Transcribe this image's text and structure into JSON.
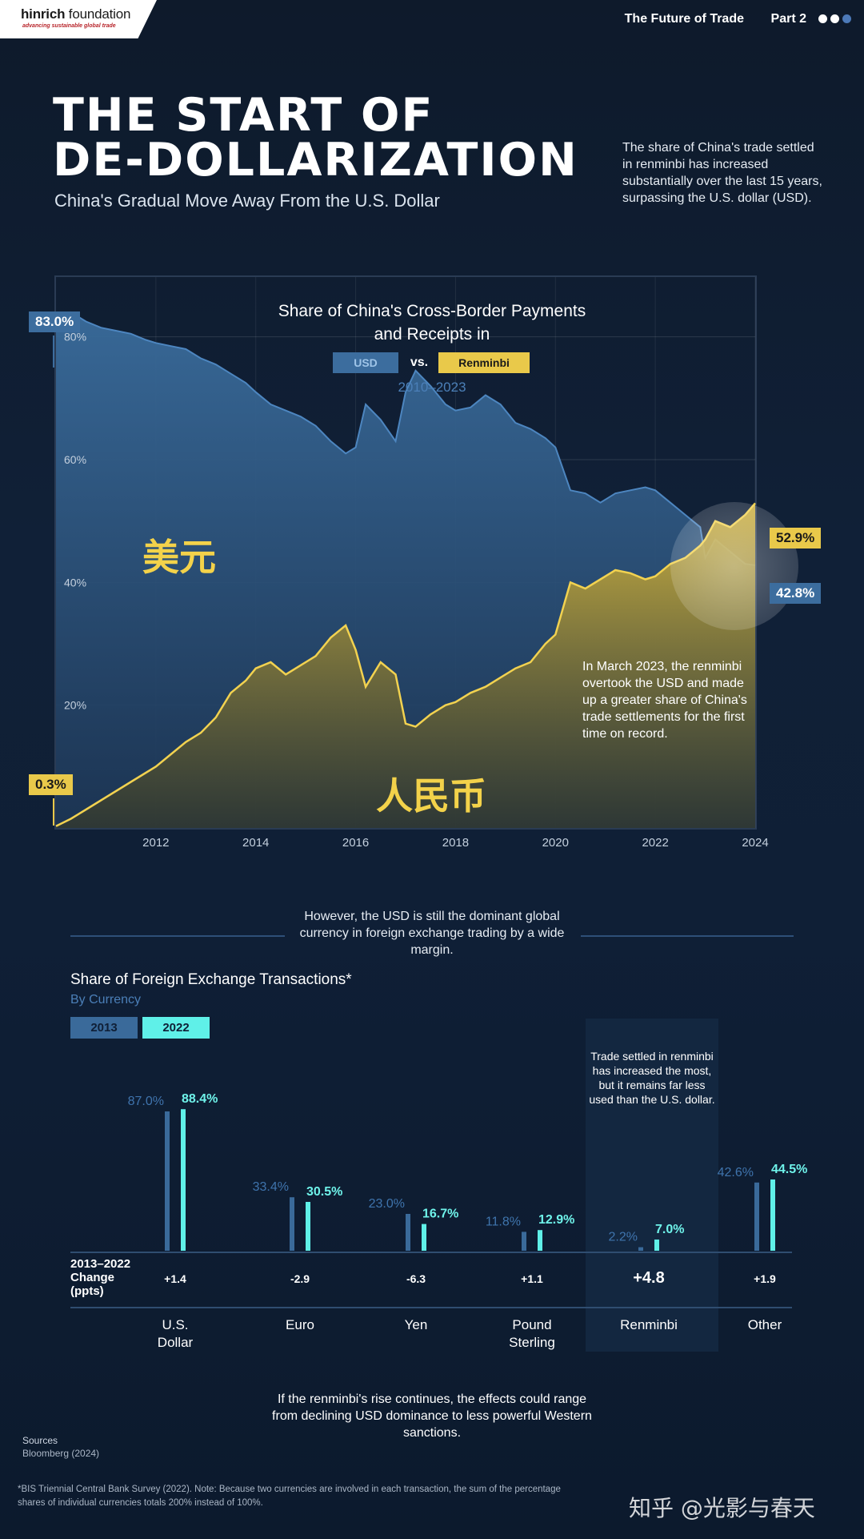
{
  "header": {
    "brand_bold": "hinrich",
    "brand_light": " foundation",
    "brand_tagline": "advancing sustainable global trade",
    "series": "The Future of Trade",
    "part": "Part 2"
  },
  "hero": {
    "title_line1": "THE START OF",
    "title_line2": "DE-DOLLARIZATION",
    "subtitle": "China's Gradual Move Away From the U.S. Dollar",
    "intro": "The share of China's trade settled in renminbi has increased substantially over the last 15 years, surpassing the U.S. dollar (USD)."
  },
  "main_chart": {
    "title": "Share of China's Cross-Border Payments and Receipts in",
    "legend_usd": "USD",
    "legend_vs": "vs.",
    "legend_rmb": "Renminbi",
    "years": "2010–2023",
    "usd_label_cn": "美元",
    "rmb_label_cn": "人民币",
    "start_usd": "83.0%",
    "start_rmb": "0.3%",
    "end_rmb": "52.9%",
    "end_usd": "42.8%",
    "annotation": "In March 2023, the renminbi overtook the USD and made up a greater share of China's trade settlements for the first time on record."
  },
  "chart_data": [
    {
      "type": "area",
      "title": "Share of China's Cross-Border Payments and Receipts in USD vs. Renminbi",
      "subtitle": "2010–2023",
      "x_ticks": [
        "2012",
        "2014",
        "2016",
        "2018",
        "2020",
        "2022",
        "2024"
      ],
      "y_ticks": [
        "20%",
        "40%",
        "60%",
        "80%"
      ],
      "ylim": [
        0,
        90
      ],
      "xlim": [
        2010.0,
        2024.0
      ],
      "grid": true,
      "series": [
        {
          "name": "USD",
          "color": "#3c6d9e",
          "points": [
            [
              2010.0,
              83.0
            ],
            [
              2010.3,
              84.0
            ],
            [
              2010.6,
              82.5
            ],
            [
              2010.9,
              81.5
            ],
            [
              2011.2,
              81.0
            ],
            [
              2011.5,
              80.5
            ],
            [
              2011.8,
              79.5
            ],
            [
              2012.0,
              79.0
            ],
            [
              2012.3,
              78.5
            ],
            [
              2012.6,
              78.0
            ],
            [
              2012.9,
              76.5
            ],
            [
              2013.2,
              75.5
            ],
            [
              2013.5,
              74.0
            ],
            [
              2013.8,
              72.5
            ],
            [
              2014.0,
              71.0
            ],
            [
              2014.3,
              69.0
            ],
            [
              2014.6,
              68.0
            ],
            [
              2014.9,
              67.0
            ],
            [
              2015.2,
              65.5
            ],
            [
              2015.5,
              63.0
            ],
            [
              2015.8,
              61.0
            ],
            [
              2016.0,
              62.0
            ],
            [
              2016.2,
              69.0
            ],
            [
              2016.5,
              66.5
            ],
            [
              2016.8,
              63.0
            ],
            [
              2017.0,
              71.0
            ],
            [
              2017.2,
              74.5
            ],
            [
              2017.5,
              72.0
            ],
            [
              2017.8,
              69.0
            ],
            [
              2018.0,
              68.0
            ],
            [
              2018.3,
              68.5
            ],
            [
              2018.6,
              70.5
            ],
            [
              2018.9,
              69.0
            ],
            [
              2019.2,
              66.0
            ],
            [
              2019.5,
              65.0
            ],
            [
              2019.8,
              63.5
            ],
            [
              2020.0,
              62.0
            ],
            [
              2020.3,
              55.0
            ],
            [
              2020.6,
              54.5
            ],
            [
              2020.9,
              53.0
            ],
            [
              2021.2,
              54.5
            ],
            [
              2021.5,
              55.0
            ],
            [
              2021.8,
              55.5
            ],
            [
              2022.0,
              55.0
            ],
            [
              2022.3,
              53.0
            ],
            [
              2022.6,
              51.0
            ],
            [
              2022.9,
              49.0
            ],
            [
              2023.0,
              44.0
            ],
            [
              2023.2,
              47.0
            ],
            [
              2023.5,
              45.0
            ],
            [
              2023.8,
              43.0
            ],
            [
              2024.0,
              42.8
            ]
          ]
        },
        {
          "name": "Renminbi",
          "color": "#e9c94a",
          "points": [
            [
              2010.0,
              0.3
            ],
            [
              2010.3,
              1.5
            ],
            [
              2010.6,
              3.0
            ],
            [
              2010.9,
              4.5
            ],
            [
              2011.2,
              6.0
            ],
            [
              2011.5,
              7.5
            ],
            [
              2011.8,
              9.0
            ],
            [
              2012.0,
              10.0
            ],
            [
              2012.3,
              12.0
            ],
            [
              2012.6,
              14.0
            ],
            [
              2012.9,
              15.5
            ],
            [
              2013.2,
              18.0
            ],
            [
              2013.5,
              22.0
            ],
            [
              2013.8,
              24.0
            ],
            [
              2014.0,
              26.0
            ],
            [
              2014.3,
              27.0
            ],
            [
              2014.6,
              25.0
            ],
            [
              2014.9,
              26.5
            ],
            [
              2015.2,
              28.0
            ],
            [
              2015.5,
              31.0
            ],
            [
              2015.8,
              33.0
            ],
            [
              2016.0,
              29.0
            ],
            [
              2016.2,
              23.0
            ],
            [
              2016.5,
              27.0
            ],
            [
              2016.8,
              25.0
            ],
            [
              2017.0,
              17.0
            ],
            [
              2017.2,
              16.5
            ],
            [
              2017.5,
              18.5
            ],
            [
              2017.8,
              20.0
            ],
            [
              2018.0,
              20.5
            ],
            [
              2018.3,
              22.0
            ],
            [
              2018.6,
              23.0
            ],
            [
              2018.9,
              24.5
            ],
            [
              2019.2,
              26.0
            ],
            [
              2019.5,
              27.0
            ],
            [
              2019.8,
              30.0
            ],
            [
              2020.0,
              31.5
            ],
            [
              2020.3,
              40.0
            ],
            [
              2020.6,
              39.0
            ],
            [
              2020.9,
              40.5
            ],
            [
              2021.2,
              42.0
            ],
            [
              2021.5,
              41.5
            ],
            [
              2021.8,
              40.5
            ],
            [
              2022.0,
              41.0
            ],
            [
              2022.3,
              43.0
            ],
            [
              2022.6,
              44.0
            ],
            [
              2022.9,
              46.0
            ],
            [
              2023.0,
              47.0
            ],
            [
              2023.2,
              50.0
            ],
            [
              2023.5,
              49.0
            ],
            [
              2023.8,
              51.0
            ],
            [
              2024.0,
              52.9
            ]
          ]
        }
      ],
      "data_labels": [
        "83.0%",
        "0.3%",
        "52.9%",
        "42.8%"
      ]
    },
    {
      "type": "bar",
      "title": "Share of Foreign Exchange Transactions*",
      "subtitle": "By Currency",
      "categories": [
        "U.S. Dollar",
        "Euro",
        "Yen",
        "Pound Sterling",
        "Renminbi",
        "Other"
      ],
      "series": [
        {
          "name": "2013",
          "color": "#3a6a9a",
          "values": [
            87.0,
            33.4,
            23.0,
            11.8,
            2.2,
            42.6
          ]
        },
        {
          "name": "2022",
          "color": "#5ff0e8",
          "values": [
            88.4,
            30.5,
            16.7,
            12.9,
            7.0,
            44.5
          ]
        }
      ],
      "labels_2013": [
        "87.0%",
        "33.4%",
        "23.0%",
        "11.8%",
        "2.2%",
        "42.6%"
      ],
      "labels_2022": [
        "88.4%",
        "30.5%",
        "16.7%",
        "12.9%",
        "7.0%",
        "44.5%"
      ],
      "change_label": "2013–2022 Change (ppts)",
      "changes": [
        "+1.4",
        "-2.9",
        "-6.3",
        "+1.1",
        "+4.8",
        "+1.9"
      ],
      "ylim": [
        0,
        100
      ]
    }
  ],
  "separator": "However, the USD is still the dominant global currency in foreign exchange trading by a wide margin.",
  "fx": {
    "title": "Share of Foreign Exchange Transactions*",
    "subtitle": "By Currency",
    "legend_2013": "2013",
    "legend_2022": "2022",
    "note": "Trade settled in renminbi has increased the most, but it remains far less used than the U.S. dollar.",
    "change_label": "2013–2022 Change (ppts)"
  },
  "footer": {
    "closing": "If the renminbi's rise continues, the effects could range from declining USD dominance to less powerful Western sanctions.",
    "sources_heading": "Sources",
    "sources": "Bloomberg (2024)",
    "footnote": "*BIS Triennial Central Bank Survey (2022). Note: Because two currencies are involved in each transaction, the sum of the percentage shares of individual currencies totals 200% instead of 100%.",
    "watermark": "知乎 @光影与春天"
  }
}
